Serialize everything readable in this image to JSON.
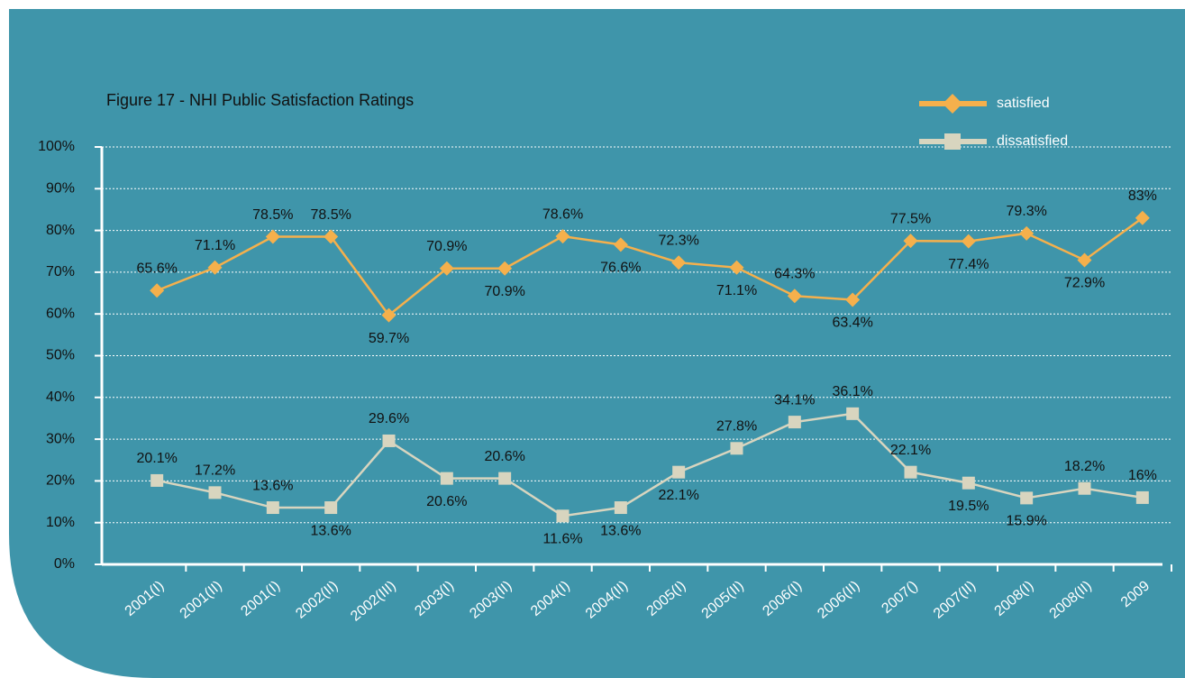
{
  "chart_data": {
    "type": "line",
    "title": "Figure 17 - NHI Public Satisfaction Ratings",
    "categories": [
      "2001(I)",
      "2001(II)",
      "2001(I)",
      "2002(II)",
      "2002(III)",
      "2003(I)",
      "2003(II)",
      "2004(I)",
      "2004(II)",
      "2005(I)",
      "2005(II)",
      "2006(I)",
      "2006(II)",
      "2007()",
      "2007(II)",
      "2008(I)",
      "2008(II)",
      "2009"
    ],
    "series": [
      {
        "name": "satisfied",
        "color": "#f5b04c",
        "marker": "diamond",
        "values": [
          65.6,
          71.1,
          78.5,
          78.5,
          59.7,
          70.9,
          70.9,
          78.6,
          76.6,
          72.3,
          71.1,
          64.3,
          63.4,
          77.5,
          77.4,
          79.3,
          72.9,
          83
        ],
        "value_labels": [
          "65.6%",
          "71.1%",
          "78.5%",
          "78.5%",
          "59.7%",
          "70.9%",
          "70.9%",
          "78.6%",
          "76.6%",
          "72.3%",
          "71.1%",
          "64.3%",
          "63.4%",
          "77.5%",
          "77.4%",
          "79.3%",
          "72.9%",
          "83%"
        ]
      },
      {
        "name": "dissatisfied",
        "color": "#d8d5bf",
        "marker": "square",
        "values": [
          20.1,
          17.2,
          13.6,
          13.6,
          29.6,
          20.6,
          20.6,
          11.6,
          13.6,
          22.1,
          27.8,
          34.1,
          36.1,
          22.1,
          19.5,
          15.9,
          18.2,
          16
        ],
        "value_labels": [
          "20.1%",
          "17.2%",
          "13.6%",
          "13.6%",
          "29.6%",
          "20.6%",
          "20.6%",
          "11.6%",
          "13.6%",
          "22.1%",
          "27.8%",
          "34.1%",
          "36.1%",
          "22.1%",
          "19.5%",
          "15.9%",
          "18.2%",
          "16%"
        ]
      }
    ],
    "ylim": [
      0,
      100
    ],
    "yticks": [
      {
        "value": 0,
        "label": "0%"
      },
      {
        "value": 10,
        "label": "10%"
      },
      {
        "value": 20,
        "label": "20%"
      },
      {
        "value": 30,
        "label": "30%"
      },
      {
        "value": 40,
        "label": "40%"
      },
      {
        "value": 50,
        "label": "50%"
      },
      {
        "value": 60,
        "label": "60%"
      },
      {
        "value": 70,
        "label": "70%"
      },
      {
        "value": 80,
        "label": "80%"
      },
      {
        "value": 90,
        "label": "90%"
      },
      {
        "value": 100,
        "label": "100%"
      }
    ],
    "grid": true,
    "legend": "top-right"
  }
}
